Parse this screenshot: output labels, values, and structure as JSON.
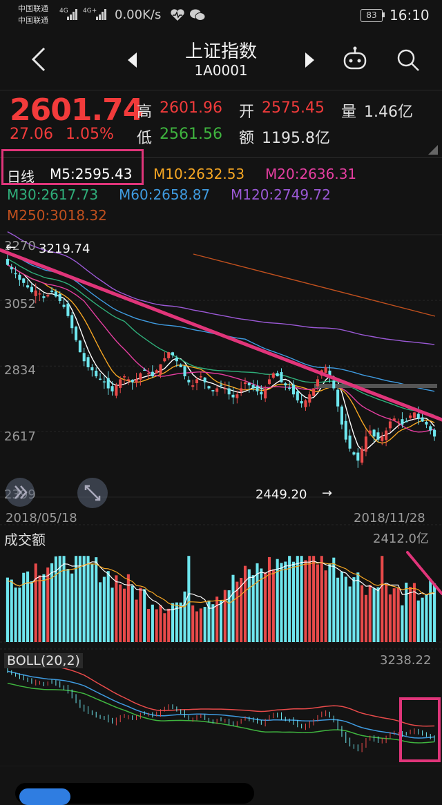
{
  "status": {
    "carrier1": "中国联通",
    "carrier2": "中国联通",
    "net1": "4G",
    "net2": "4G+",
    "speed": "0.00K/s",
    "battery": "83",
    "time": "16:10"
  },
  "header": {
    "title": "上证指数",
    "code": "1A0001"
  },
  "quote": {
    "price": "2601.74",
    "change": "27.06",
    "change_pct": "1.05%",
    "high_label": "高",
    "high": "2601.96",
    "low_label": "低",
    "low": "2561.56",
    "open_label": "开",
    "open": "2575.45",
    "amount_label": "额",
    "amount": "1195.8亿",
    "volume_label": "量",
    "volume": "1.46亿"
  },
  "ma": {
    "period_label": "日线",
    "m5": "M5:2595.43",
    "m10": "M10:2632.53",
    "m20": "M20:2636.31",
    "m30": "M30:2617.73",
    "m60": "M60:2658.87",
    "m120": "M120:2749.72",
    "m250": "M250:3018.32"
  },
  "colors": {
    "m5": "#ffffff",
    "m10": "#f5a623",
    "m20": "#e43ea0",
    "m30": "#2fae7a",
    "m60": "#3f9be0",
    "m120": "#9b59d6",
    "m250": "#c0501e",
    "up": "#e84a4a",
    "down": "#6ee6ee",
    "annotation": "#e0357a"
  },
  "kline": {
    "y_ticks": [
      "3270",
      "3052",
      "2834",
      "2617",
      "2399"
    ],
    "max_label": "3219.74",
    "min_label": "2449.20",
    "start_date": "2018/05/18",
    "end_date": "2018/11/28"
  },
  "turnover": {
    "label": "成交额",
    "max": "2412.0亿"
  },
  "boll": {
    "label": "BOLL(20,2)",
    "max": "3238.22"
  },
  "chart_data": [
    {
      "type": "candlestick",
      "title": "上证指数 日线",
      "x_range": [
        "2018/05/18",
        "2018/11/28"
      ],
      "ylim": [
        2399,
        3270
      ],
      "y_ticks": [
        3270,
        3052,
        2834,
        2617,
        2399
      ],
      "annotations": [
        {
          "label": "3219.74",
          "type": "max"
        },
        {
          "label": "2449.20",
          "type": "min"
        }
      ],
      "close": [
        3170,
        3155,
        3140,
        3120,
        3110,
        3095,
        3080,
        3085,
        3075,
        3060,
        3070,
        3080,
        3065,
        3050,
        3030,
        3000,
        2960,
        2920,
        2880,
        2850,
        2830,
        2820,
        2800,
        2790,
        2780,
        2760,
        2750,
        2770,
        2790,
        2800,
        2790,
        2780,
        2790,
        2810,
        2820,
        2810,
        2800,
        2820,
        2840,
        2860,
        2880,
        2870,
        2850,
        2830,
        2800,
        2780,
        2770,
        2790,
        2800,
        2780,
        2760,
        2750,
        2760,
        2770,
        2760,
        2740,
        2730,
        2740,
        2760,
        2780,
        2770,
        2760,
        2750,
        2740,
        2760,
        2790,
        2810,
        2800,
        2780,
        2770,
        2760,
        2740,
        2720,
        2710,
        2720,
        2740,
        2760,
        2790,
        2820,
        2830,
        2800,
        2760,
        2700,
        2640,
        2590,
        2560,
        2540,
        2520,
        2560,
        2600,
        2620,
        2600,
        2590,
        2600,
        2620,
        2650,
        2660,
        2650,
        2640,
        2650,
        2670,
        2680,
        2660,
        2650,
        2640,
        2620,
        2600
      ],
      "ma_series": [
        {
          "name": "M5",
          "last": 2595.43
        },
        {
          "name": "M10",
          "last": 2632.53
        },
        {
          "name": "M20",
          "last": 2636.31
        },
        {
          "name": "M30",
          "last": 2617.73
        },
        {
          "name": "M60",
          "last": 2658.87
        },
        {
          "name": "M120",
          "last": 2749.72
        },
        {
          "name": "M250",
          "last": 3018.32
        }
      ]
    },
    {
      "type": "bar",
      "title": "成交额",
      "max_label": "2412.0亿",
      "count": 107
    },
    {
      "type": "line",
      "title": "BOLL(20,2)",
      "max_label": "3238.22"
    }
  ]
}
